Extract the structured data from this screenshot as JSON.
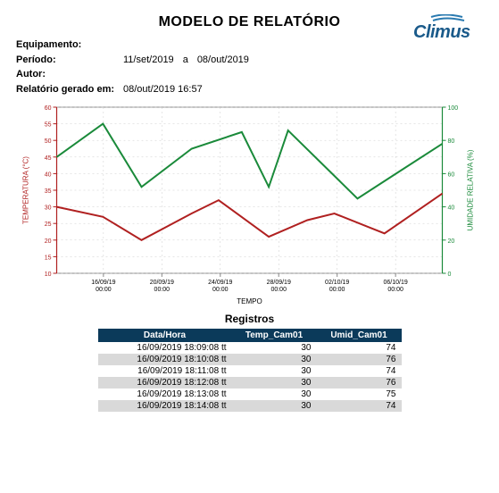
{
  "title": "MODELO DE RELATÓRIO",
  "logo_text": "Climus",
  "logo_color": "#1a5a8a",
  "meta": {
    "equip_label": "Equipamento:",
    "equip_value": "",
    "periodo_label": "Período:",
    "periodo_start": "11/set/2019",
    "periodo_sep": "a",
    "periodo_end": "08/out/2019",
    "autor_label": "Autor:",
    "autor_value": "",
    "gerado_label": "Relatório gerado em:",
    "gerado_value": "08/out/2019 16:57"
  },
  "chart": {
    "type": "line",
    "background_color": "#ffffff",
    "plot_border_color": "#888888",
    "grid_color": "#cccccc",
    "xlabel": "TEMPO",
    "ylabel_left": "TEMPERATURA (°C)",
    "ylabel_right": "UMIDADE RELATIVA (%)",
    "label_fontsize": 8,
    "tick_fontsize": 7,
    "y_left": {
      "min": 10,
      "max": 60,
      "step": 5,
      "axis_color": "#b02020"
    },
    "y_right": {
      "min": 0,
      "max": 100,
      "step": 20,
      "axis_color": "#1a8a3a"
    },
    "x_ticks": [
      "16/09/19\n00:00",
      "20/09/19\n00:00",
      "24/09/19\n00:00",
      "28/09/19\n00:00",
      "02/10/19\n00:00",
      "06/10/19\n00:00"
    ],
    "series": [
      {
        "name": "umidade",
        "axis": "right",
        "color": "#1a8a3a",
        "line_width": 2,
        "points": [
          {
            "x": 0.0,
            "y": 70
          },
          {
            "x": 0.12,
            "y": 90
          },
          {
            "x": 0.22,
            "y": 52
          },
          {
            "x": 0.35,
            "y": 75
          },
          {
            "x": 0.48,
            "y": 85
          },
          {
            "x": 0.55,
            "y": 52
          },
          {
            "x": 0.6,
            "y": 86
          },
          {
            "x": 0.78,
            "y": 45
          },
          {
            "x": 0.88,
            "y": 60
          },
          {
            "x": 1.0,
            "y": 78
          }
        ]
      },
      {
        "name": "temperatura",
        "axis": "left",
        "color": "#b02020",
        "line_width": 2,
        "points": [
          {
            "x": 0.0,
            "y": 30
          },
          {
            "x": 0.12,
            "y": 27
          },
          {
            "x": 0.22,
            "y": 20
          },
          {
            "x": 0.35,
            "y": 28
          },
          {
            "x": 0.42,
            "y": 32
          },
          {
            "x": 0.55,
            "y": 21
          },
          {
            "x": 0.65,
            "y": 26
          },
          {
            "x": 0.72,
            "y": 28
          },
          {
            "x": 0.85,
            "y": 22
          },
          {
            "x": 1.0,
            "y": 34
          }
        ]
      }
    ]
  },
  "registros": {
    "title": "Registros",
    "columns": [
      "Data/Hora",
      "Temp_Cam01",
      "Umid_Cam01"
    ],
    "rows": [
      [
        "16/09/2019 18:09:08 tt",
        "30",
        "74"
      ],
      [
        "16/09/2019 18:10:08 tt",
        "30",
        "76"
      ],
      [
        "16/09/2019 18:11:08 tt",
        "30",
        "74"
      ],
      [
        "16/09/2019 18:12:08 tt",
        "30",
        "76"
      ],
      [
        "16/09/2019 18:13:08 tt",
        "30",
        "75"
      ],
      [
        "16/09/2019 18:14:08 tt",
        "30",
        "74"
      ]
    ],
    "header_bg": "#0b3a5a",
    "header_fg": "#ffffff",
    "row_odd_bg": "#ffffff",
    "row_even_bg": "#d9d9d9"
  }
}
